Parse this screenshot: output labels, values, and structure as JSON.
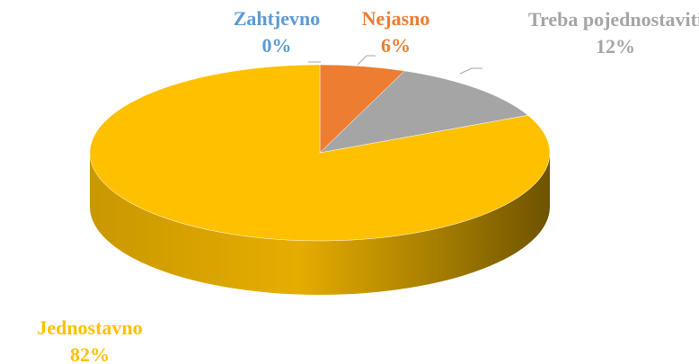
{
  "chart_data": {
    "type": "pie",
    "categories": [
      "Zahtjevno",
      "Nejasno",
      "Treba pojednostaviti",
      "Jednostavno"
    ],
    "values": [
      0,
      6,
      12,
      82
    ],
    "value_labels": [
      "0%",
      "6%",
      "12%",
      "82%"
    ],
    "colors": [
      "#5b9bd5",
      "#ed7d31",
      "#a5a5a5",
      "#ffc000"
    ]
  }
}
